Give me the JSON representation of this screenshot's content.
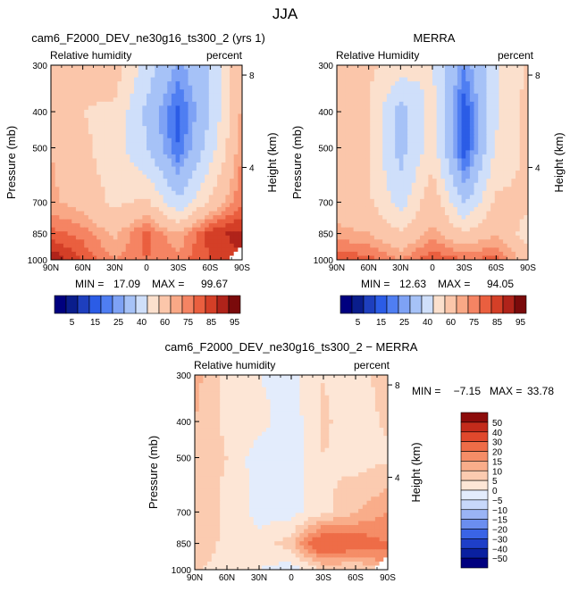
{
  "page": {
    "title": "JJA"
  },
  "colors": {
    "rh_scale": [
      "#00007f",
      "#0a1d8c",
      "#1e3fbe",
      "#2b5ce6",
      "#4f7ef2",
      "#7ea2f5",
      "#a6c2f7",
      "#cfdffa",
      "#fbe0cd",
      "#fbc6aa",
      "#f9a886",
      "#f58463",
      "#ea5f3f",
      "#d43f27",
      "#b0231a",
      "#7a0a0b"
    ],
    "diff_scale": [
      "#00007f",
      "#0a20a0",
      "#1e3fc8",
      "#3a64e6",
      "#6b8eef",
      "#9ab4f5",
      "#c7d8fa",
      "#e3ecfc",
      "#fde6d6",
      "#fbcbb0",
      "#f9ad8a",
      "#f58d67",
      "#ee6c47",
      "#e0482c",
      "#c32b1b",
      "#8c0c0b"
    ]
  },
  "chart_data": [
    {
      "type": "heatmap",
      "title": "cam6_F2000_DEV_ne30g16_ts300_2 (yrs 1)",
      "left_label": "Relative humidity",
      "right_label": "percent",
      "xlabel": "",
      "ylabel": "Pressure (mb)",
      "right_axis_label": "Height (km)",
      "x_ticks": [
        "90N",
        "60N",
        "30N",
        "0",
        "30S",
        "60S",
        "90S"
      ],
      "y_ticks": [
        "300",
        "400",
        "500",
        "700",
        "850",
        "1000"
      ],
      "right_ticks": [
        "8",
        "4"
      ],
      "stats": {
        "min_label": "MIN =",
        "min": "17.09",
        "max_label": "MAX =",
        "max": "99.67"
      },
      "colorbar": {
        "labels": [
          "5",
          "15",
          "25",
          "40",
          "60",
          "75",
          "85",
          "95"
        ]
      },
      "ylim": [
        1000,
        300
      ],
      "xlim": [
        90,
        -90
      ],
      "grid_lat": [
        90,
        60,
        30,
        0,
        -30,
        -60,
        -90
      ],
      "grid_p": [
        300,
        400,
        500,
        700,
        850,
        1000
      ],
      "values": [
        [
          60,
          62,
          66,
          45,
          28,
          40,
          70
        ],
        [
          62,
          60,
          58,
          38,
          18,
          40,
          72
        ],
        [
          70,
          62,
          55,
          40,
          20,
          45,
          75
        ],
        [
          72,
          66,
          58,
          62,
          42,
          62,
          80
        ],
        [
          82,
          78,
          68,
          82,
          70,
          88,
          92
        ],
        [
          95,
          85,
          75,
          80,
          78,
          85,
          null
        ]
      ]
    },
    {
      "type": "heatmap",
      "title": "MERRA",
      "left_label": "Relative Humidity",
      "right_label": "percent",
      "xlabel": "",
      "ylabel": "Pressure (mb)",
      "right_axis_label": "Height (km)",
      "x_ticks": [
        "90N",
        "60N",
        "30N",
        "0",
        "30S",
        "60S",
        "90S"
      ],
      "y_ticks": [
        "300",
        "400",
        "500",
        "700",
        "850",
        "1000"
      ],
      "right_ticks": [
        "8",
        "4"
      ],
      "stats": {
        "min_label": "MIN =",
        "min": "12.63",
        "max_label": "MAX =",
        "max": "94.05"
      },
      "colorbar": {
        "labels": [
          "5",
          "15",
          "25",
          "40",
          "60",
          "75",
          "85",
          "95"
        ]
      },
      "ylim": [
        1000,
        300
      ],
      "xlim": [
        90,
        -90
      ],
      "grid_lat": [
        90,
        60,
        30,
        0,
        -30,
        -60,
        -90
      ],
      "grid_p": [
        300,
        400,
        500,
        700,
        850,
        1000
      ],
      "values": [
        [
          60,
          62,
          55,
          50,
          25,
          48,
          62
        ],
        [
          62,
          60,
          35,
          55,
          15,
          48,
          64
        ],
        [
          64,
          60,
          36,
          55,
          15,
          52,
          62
        ],
        [
          66,
          62,
          45,
          68,
          38,
          62,
          62
        ],
        [
          72,
          70,
          62,
          72,
          62,
          70,
          55
        ],
        [
          85,
          82,
          75,
          85,
          80,
          82,
          65
        ]
      ]
    },
    {
      "type": "heatmap",
      "title": "cam6_F2000_DEV_ne30g16_ts300_2 − MERRA",
      "left_label": "Relative humidity",
      "right_label": "percent",
      "xlabel": "",
      "ylabel": "Pressure (mb)",
      "right_axis_label": "Height (km)",
      "x_ticks": [
        "90N",
        "60N",
        "30N",
        "0",
        "30S",
        "60S",
        "90S"
      ],
      "y_ticks": [
        "300",
        "400",
        "500",
        "700",
        "850",
        "1000"
      ],
      "right_ticks": [
        "8",
        "4"
      ],
      "stats": {
        "min_label": "MIN =",
        "min": "−7.15",
        "max_label": "MAX =",
        "max": "33.78"
      },
      "colorbar": {
        "labels": [
          "50",
          "40",
          "30",
          "20",
          "15",
          "10",
          "5",
          "0",
          "−5",
          "−10",
          "−15",
          "−20",
          "−30",
          "−40",
          "−50"
        ]
      },
      "ylim": [
        1000,
        300
      ],
      "xlim": [
        90,
        -90
      ],
      "grid_lat": [
        90,
        60,
        30,
        0,
        -30,
        -60,
        -90
      ],
      "grid_p": [
        300,
        400,
        500,
        700,
        850,
        1000
      ],
      "values": [
        [
          12,
          3,
          0,
          -2,
          5,
          2,
          8
        ],
        [
          10,
          4,
          2,
          -3,
          6,
          2,
          6
        ],
        [
          6,
          5,
          -3,
          -4,
          5,
          3,
          4
        ],
        [
          8,
          4,
          -2,
          -2,
          3,
          10,
          15
        ],
        [
          10,
          3,
          2,
          8,
          30,
          25,
          20
        ],
        [
          6,
          2,
          0,
          -3,
          5,
          4,
          null
        ]
      ]
    }
  ]
}
